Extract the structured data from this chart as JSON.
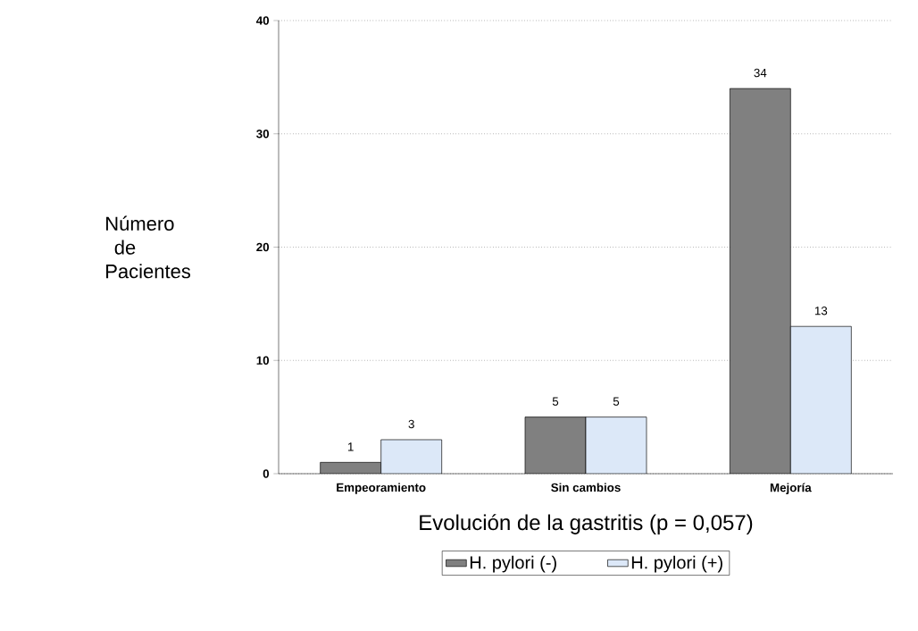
{
  "chart_data": {
    "type": "bar",
    "xlabel": "Evolución de la gastritis  (p  = 0,057)",
    "ylabel": "Número de Pacientes",
    "categories": [
      "Empeoramiento",
      "Sin cambios",
      "Mejoría"
    ],
    "series": [
      {
        "name": "H. pylori (-)",
        "color": "#808080",
        "values": [
          1,
          5,
          34
        ]
      },
      {
        "name": "H. pylori  (+)",
        "color": "#dce8f8",
        "values": [
          3,
          5,
          13
        ]
      }
    ],
    "ylim": [
      0,
      40
    ],
    "yticks": [
      0,
      10,
      20,
      30,
      40
    ],
    "grid": "y",
    "legend": "bottom",
    "data_labels": true
  }
}
